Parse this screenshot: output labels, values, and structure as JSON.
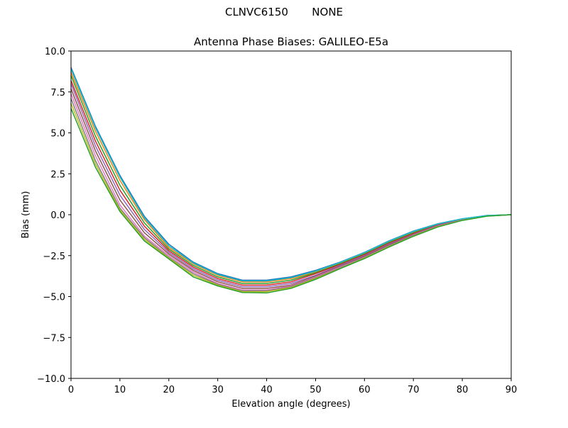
{
  "figure": {
    "suptitle": "CLNVC6150       NONE"
  },
  "chart_data": {
    "type": "line",
    "title": "Antenna Phase Biases: GALILEO-E5a",
    "xlabel": "Elevation angle (degrees)",
    "ylabel": "Bias (mm)",
    "xlim": [
      0,
      90
    ],
    "ylim": [
      -10,
      10
    ],
    "xticks": [
      0,
      10,
      20,
      30,
      40,
      50,
      60,
      70,
      80,
      90
    ],
    "xtick_labels": [
      "0",
      "10",
      "20",
      "30",
      "40",
      "50",
      "60",
      "70",
      "80",
      "90"
    ],
    "yticks": [
      -10,
      -7.5,
      -5,
      -2.5,
      0,
      2.5,
      5,
      7.5,
      10
    ],
    "ytick_labels": [
      "−10.0",
      "−7.5",
      "−5.0",
      "−2.5",
      "0.0",
      "2.5",
      "5.0",
      "7.5",
      "10.0"
    ],
    "grid": false,
    "legend": "none",
    "x": [
      0,
      5,
      10,
      15,
      20,
      25,
      30,
      35,
      40,
      45,
      50,
      55,
      60,
      65,
      70,
      75,
      80,
      85,
      90
    ],
    "series": [
      {
        "color": "#1f77b4",
        "values": [
          9.0,
          5.4,
          2.4,
          -0.1,
          -1.8,
          -2.9,
          -3.6,
          -4.0,
          -4.0,
          -3.8,
          -3.4,
          -2.9,
          -2.3,
          -1.6,
          -1.0,
          -0.55,
          -0.25,
          -0.05,
          0.0
        ]
      },
      {
        "color": "#ff7f0e",
        "values": [
          8.7,
          5.1,
          2.1,
          -0.3,
          -2.0,
          -3.0,
          -3.7,
          -4.1,
          -4.1,
          -3.9,
          -3.5,
          -2.95,
          -2.35,
          -1.65,
          -1.05,
          -0.58,
          -0.26,
          -0.05,
          0.0
        ]
      },
      {
        "color": "#2ca02c",
        "values": [
          8.5,
          4.8,
          1.8,
          -0.5,
          -2.1,
          -3.1,
          -3.8,
          -4.2,
          -4.2,
          -4.0,
          -3.55,
          -3.0,
          -2.4,
          -1.7,
          -1.1,
          -0.6,
          -0.27,
          -0.06,
          0.0
        ]
      },
      {
        "color": "#d62728",
        "values": [
          8.2,
          4.5,
          1.5,
          -0.7,
          -2.2,
          -3.2,
          -3.9,
          -4.3,
          -4.3,
          -4.1,
          -3.6,
          -3.05,
          -2.45,
          -1.75,
          -1.15,
          -0.63,
          -0.28,
          -0.06,
          0.0
        ]
      },
      {
        "color": "#9467bd",
        "values": [
          8.0,
          4.2,
          1.2,
          -0.9,
          -2.3,
          -3.3,
          -4.0,
          -4.4,
          -4.4,
          -4.2,
          -3.7,
          -3.1,
          -2.5,
          -1.8,
          -1.2,
          -0.65,
          -0.3,
          -0.07,
          0.0
        ]
      },
      {
        "color": "#8c564b",
        "values": [
          7.7,
          3.9,
          0.9,
          -1.1,
          -2.4,
          -3.4,
          -4.1,
          -4.5,
          -4.5,
          -4.3,
          -3.75,
          -3.15,
          -2.55,
          -1.85,
          -1.22,
          -0.68,
          -0.31,
          -0.07,
          0.0
        ]
      },
      {
        "color": "#e377c2",
        "values": [
          7.4,
          3.6,
          0.6,
          -1.3,
          -2.5,
          -3.5,
          -4.2,
          -4.6,
          -4.6,
          -4.35,
          -3.8,
          -3.2,
          -2.6,
          -1.9,
          -1.25,
          -0.7,
          -0.32,
          -0.08,
          0.0
        ]
      },
      {
        "color": "#7f7f7f",
        "values": [
          7.1,
          3.3,
          0.4,
          -1.4,
          -2.6,
          -3.6,
          -4.25,
          -4.65,
          -4.65,
          -4.4,
          -3.85,
          -3.25,
          -2.62,
          -1.92,
          -1.27,
          -0.72,
          -0.33,
          -0.08,
          0.0
        ]
      },
      {
        "color": "#bcbd22",
        "values": [
          6.8,
          3.1,
          0.3,
          -1.5,
          -2.65,
          -3.7,
          -4.3,
          -4.7,
          -4.7,
          -4.45,
          -3.9,
          -3.28,
          -2.65,
          -1.95,
          -1.3,
          -0.73,
          -0.34,
          -0.08,
          0.0
        ]
      },
      {
        "color": "#17becf",
        "values": [
          8.9,
          5.3,
          2.3,
          -0.2,
          -1.9,
          -2.95,
          -3.65,
          -4.05,
          -4.05,
          -3.85,
          -3.45,
          -2.92,
          -2.32,
          -1.62,
          -1.02,
          -0.56,
          -0.25,
          -0.05,
          0.0
        ]
      },
      {
        "color": "#2ca02c",
        "values": [
          6.5,
          2.9,
          0.2,
          -1.6,
          -2.7,
          -3.8,
          -4.35,
          -4.75,
          -4.78,
          -4.5,
          -3.95,
          -3.3,
          -2.68,
          -1.98,
          -1.32,
          -0.75,
          -0.35,
          -0.09,
          0.0
        ]
      }
    ]
  }
}
